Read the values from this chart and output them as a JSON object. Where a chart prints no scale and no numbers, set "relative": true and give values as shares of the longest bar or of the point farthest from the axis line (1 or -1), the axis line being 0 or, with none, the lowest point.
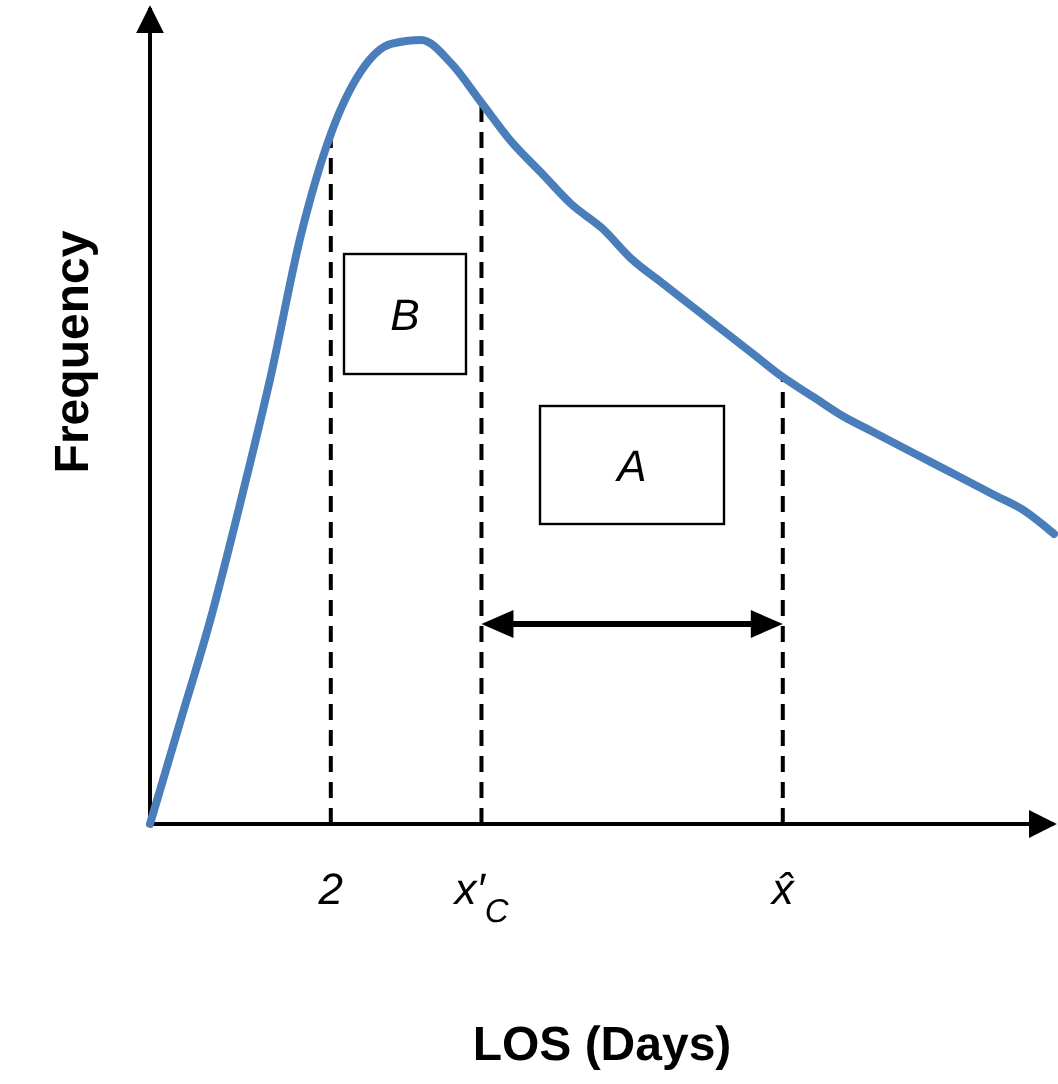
{
  "chart_data": {
    "type": "line",
    "relative": true,
    "xlabel": "LOS (Days)",
    "ylabel": "Frequency",
    "categories": [
      null,
      null,
      null,
      null,
      null,
      null,
      "2",
      null,
      null,
      null,
      null,
      "x′$_{C}$",
      null,
      null,
      null,
      null,
      null,
      null,
      null,
      null,
      null,
      "x̂",
      null,
      null,
      null,
      null,
      null,
      null,
      null,
      null,
      null
    ],
    "annotations": [
      "B",
      "A"
    ],
    "ref_lines": [
      {
        "axis": "x",
        "value": "2",
        "line_style": "dashed"
      },
      {
        "axis": "x",
        "value": "x′$_{C}$",
        "line_style": "dashed"
      },
      {
        "axis": "x",
        "value": "x̂",
        "line_style": "dashed"
      }
    ],
    "series": [
      {
        "color": "#4a7ebb",
        "values": [
          0,
          0.13,
          0.26,
          0.41,
          0.57,
          0.75,
          0.88,
          0.96,
          0.995,
          1,
          0.97,
          0.92,
          0.87,
          0.83,
          0.79,
          0.76,
          0.72,
          0.69,
          0.66,
          0.63,
          0.6,
          0.57,
          0.545,
          0.52,
          0.5,
          0.48,
          0.46,
          0.44,
          0.42,
          0.4,
          0.37
        ]
      }
    ]
  }
}
